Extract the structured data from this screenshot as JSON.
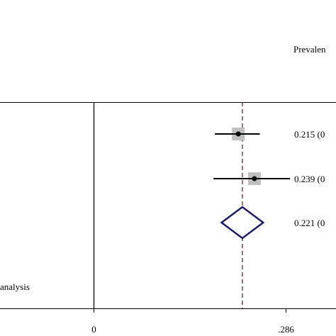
{
  "chart_data": {
    "type": "forest",
    "column_header": "Prevalen",
    "axis_ticks": [
      {
        "value": 0,
        "label": "0"
      },
      {
        "value": 0.286,
        "label": ".286"
      }
    ],
    "reference_line": {
      "value": 0.221,
      "style": "dashed",
      "color": "#8b1a1a"
    },
    "null_line": {
      "value": 0
    },
    "rows": [
      {
        "estimate": 0.215,
        "ci_low": 0.18,
        "ci_high": 0.247,
        "label": "0.215 (0",
        "marker": "square-point"
      },
      {
        "estimate": 0.239,
        "ci_low": 0.178,
        "ci_high": 0.292,
        "label": "0.239 (0",
        "marker": "square-point"
      },
      {
        "estimate": 0.221,
        "ci_low": 0.19,
        "ci_high": 0.252,
        "label": "0.221 (0",
        "marker": "diamond",
        "color": "#1a1a6e"
      }
    ],
    "footnote": "analysis",
    "colors": {
      "box": "#c0c0c0",
      "point": "#000000",
      "diamond": "#1a1a6e",
      "reference": "#8b1a1a"
    }
  }
}
